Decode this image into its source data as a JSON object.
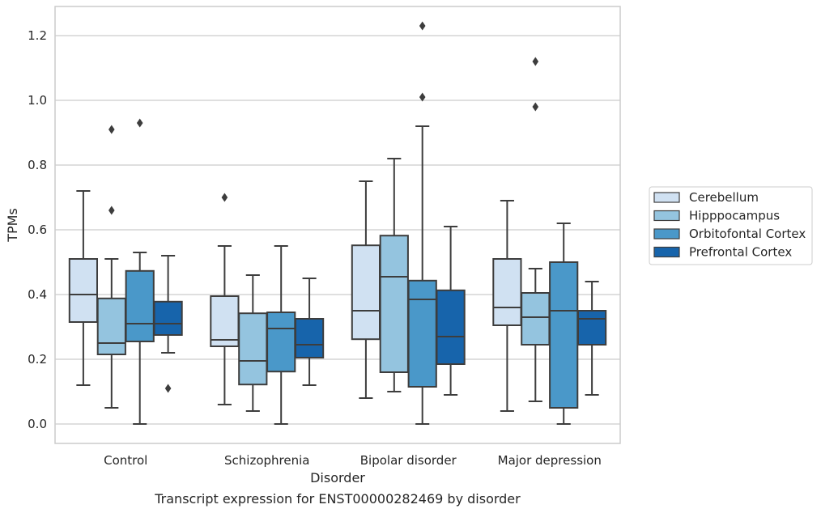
{
  "chart_data": {
    "type": "box",
    "xlabel": "Disorder",
    "ylabel": "TPMs",
    "caption": "Transcript expression for ENST00000282469 by disorder",
    "ylim": [
      -0.06,
      1.29
    ],
    "yticks": [
      "0.0",
      "0.2",
      "0.4",
      "0.6",
      "0.8",
      "1.0",
      "1.2"
    ],
    "ytick_values": [
      0,
      0.2,
      0.4,
      0.6,
      0.8,
      1.0,
      1.2
    ],
    "grid": true,
    "legend_position": "right",
    "categories": [
      "Control",
      "Schizophrenia",
      "Bipolar disorder",
      "Major depression"
    ],
    "series": [
      {
        "name": "Cerebellum",
        "color": "#d0e1f2",
        "boxes": [
          {
            "whisker_low": 0.12,
            "q1": 0.315,
            "median": 0.4,
            "q3": 0.51,
            "whisker_high": 0.72,
            "outliers": []
          },
          {
            "whisker_low": 0.06,
            "q1": 0.24,
            "median": 0.26,
            "q3": 0.395,
            "whisker_high": 0.55,
            "outliers": [
              0.7
            ]
          },
          {
            "whisker_low": 0.08,
            "q1": 0.262,
            "median": 0.35,
            "q3": 0.552,
            "whisker_high": 0.75,
            "outliers": []
          },
          {
            "whisker_low": 0.04,
            "q1": 0.305,
            "median": 0.36,
            "q3": 0.51,
            "whisker_high": 0.69,
            "outliers": []
          }
        ]
      },
      {
        "name": "Hipppocampus",
        "color": "#94c4df",
        "boxes": [
          {
            "whisker_low": 0.05,
            "q1": 0.215,
            "median": 0.25,
            "q3": 0.388,
            "whisker_high": 0.51,
            "outliers": [
              0.66,
              0.91
            ]
          },
          {
            "whisker_low": 0.04,
            "q1": 0.122,
            "median": 0.195,
            "q3": 0.342,
            "whisker_high": 0.46,
            "outliers": []
          },
          {
            "whisker_low": 0.1,
            "q1": 0.16,
            "median": 0.455,
            "q3": 0.582,
            "whisker_high": 0.82,
            "outliers": []
          },
          {
            "whisker_low": 0.07,
            "q1": 0.245,
            "median": 0.33,
            "q3": 0.405,
            "whisker_high": 0.48,
            "outliers": [
              0.98,
              1.12
            ]
          }
        ]
      },
      {
        "name": "Orbitofontal Cortex",
        "color": "#4a98c9",
        "boxes": [
          {
            "whisker_low": 0.0,
            "q1": 0.255,
            "median": 0.31,
            "q3": 0.473,
            "whisker_high": 0.53,
            "outliers": [
              0.93
            ]
          },
          {
            "whisker_low": 0.0,
            "q1": 0.162,
            "median": 0.295,
            "q3": 0.345,
            "whisker_high": 0.55,
            "outliers": []
          },
          {
            "whisker_low": 0.0,
            "q1": 0.115,
            "median": 0.385,
            "q3": 0.443,
            "whisker_high": 0.92,
            "outliers": [
              1.01,
              1.23
            ]
          },
          {
            "whisker_low": 0.0,
            "q1": 0.05,
            "median": 0.35,
            "q3": 0.5,
            "whisker_high": 0.62,
            "outliers": []
          }
        ]
      },
      {
        "name": "Prefrontal Cortex",
        "color": "#1764ab",
        "boxes": [
          {
            "whisker_low": 0.22,
            "q1": 0.275,
            "median": 0.31,
            "q3": 0.378,
            "whisker_high": 0.52,
            "outliers": [
              0.11
            ]
          },
          {
            "whisker_low": 0.12,
            "q1": 0.205,
            "median": 0.245,
            "q3": 0.325,
            "whisker_high": 0.45,
            "outliers": []
          },
          {
            "whisker_low": 0.09,
            "q1": 0.185,
            "median": 0.27,
            "q3": 0.413,
            "whisker_high": 0.61,
            "outliers": []
          },
          {
            "whisker_low": 0.09,
            "q1": 0.245,
            "median": 0.325,
            "q3": 0.35,
            "whisker_high": 0.44,
            "outliers": []
          }
        ]
      }
    ]
  }
}
